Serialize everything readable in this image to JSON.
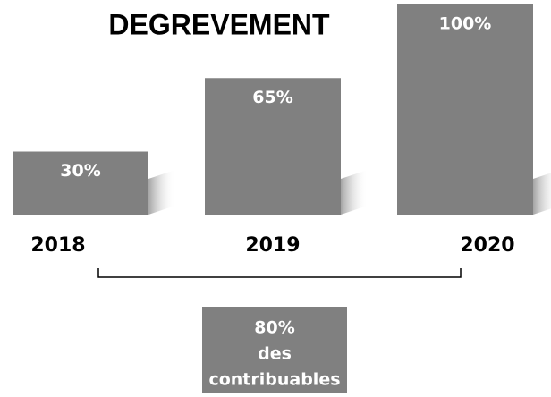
{
  "chart_data": {
    "type": "bar",
    "title": "DEGREVEMENT",
    "categories": [
      "2018",
      "2019",
      "2020"
    ],
    "values": [
      30,
      65,
      100
    ],
    "value_labels": [
      "30%",
      "65%",
      "100%"
    ],
    "color": "#808080",
    "annotation": [
      "80%",
      "des",
      "contribuables"
    ]
  }
}
